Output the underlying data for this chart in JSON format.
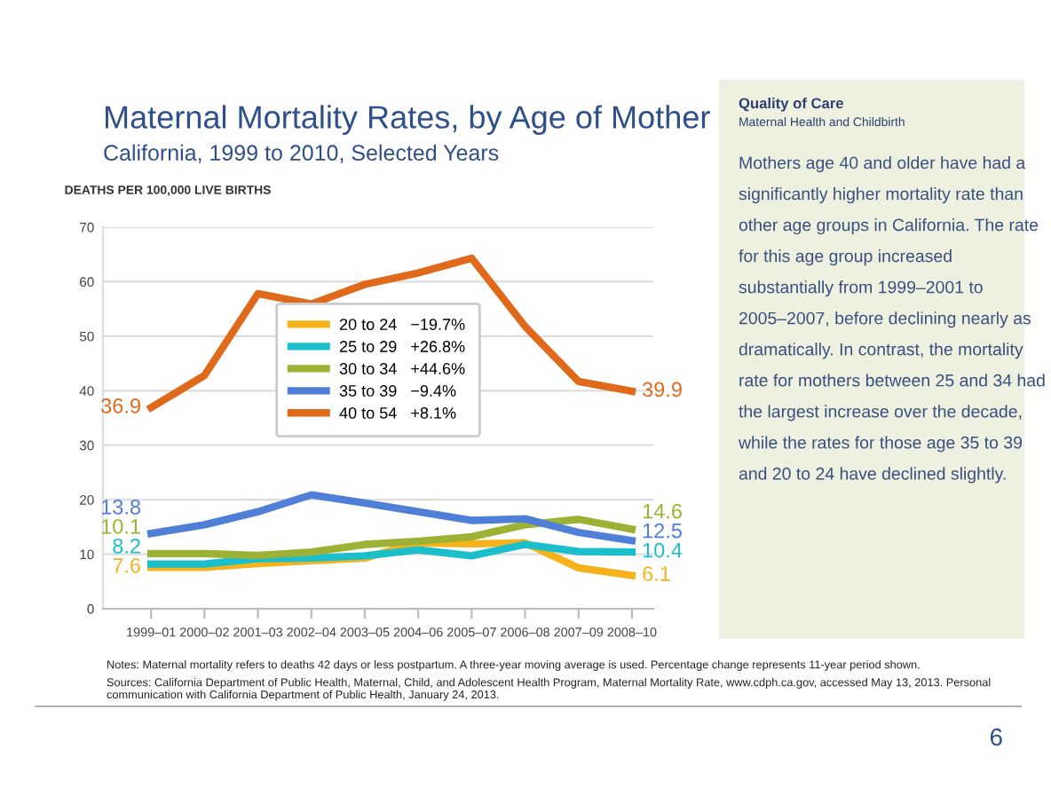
{
  "chart_data": {
    "type": "line",
    "title": "Maternal Mortality Rates, by Age of Mother",
    "subtitle": "California, 1999 to 2010, Selected Years",
    "ylabel": "DEATHS PER 100,000 LIVE BIRTHS",
    "categories": [
      "1999–01",
      "2000–02",
      "2001–03",
      "2002–04",
      "2003–05",
      "2004–06",
      "2005–07",
      "2006–08",
      "2007–09",
      "2008–10"
    ],
    "series": [
      {
        "name": "20 to 24   −19.7%",
        "color": "#f5b21b",
        "values": [
          7.6,
          7.6,
          8.3,
          8.8,
          9.3,
          12.1,
          11.9,
          12.1,
          7.5,
          6.1
        ],
        "value_labels": [
          "7.6",
          null,
          null,
          null,
          null,
          null,
          null,
          null,
          null,
          "6.1"
        ]
      },
      {
        "name": "25 to 29   +26.8%",
        "color": "#1bbfcc",
        "values": [
          8.2,
          8.2,
          9.2,
          9.3,
          9.7,
          10.8,
          9.7,
          11.8,
          10.5,
          10.4
        ],
        "value_labels": [
          "8.2",
          null,
          null,
          null,
          null,
          null,
          null,
          null,
          null,
          "10.4"
        ]
      },
      {
        "name": "30 to 34   +44.6%",
        "color": "#9db234",
        "values": [
          10.1,
          10.1,
          9.8,
          10.4,
          11.8,
          12.4,
          13.2,
          15.4,
          16.4,
          14.6
        ],
        "value_labels": [
          "10.1",
          null,
          null,
          null,
          null,
          null,
          null,
          null,
          null,
          "14.6"
        ]
      },
      {
        "name": "35 to 39   −9.4%",
        "color": "#4f7fd6",
        "values": [
          13.8,
          15.4,
          17.8,
          20.9,
          19.4,
          17.8,
          16.2,
          16.5,
          14.0,
          12.5
        ],
        "value_labels": [
          "13.8",
          null,
          null,
          null,
          null,
          null,
          null,
          null,
          null,
          "12.5"
        ]
      },
      {
        "name": "40 to 54   +8.1%",
        "color": "#e06a1c",
        "values": [
          36.9,
          42.8,
          57.8,
          55.9,
          59.5,
          61.6,
          64.3,
          51.8,
          41.7,
          39.9
        ],
        "value_labels": [
          "36.9",
          null,
          null,
          null,
          null,
          null,
          null,
          null,
          null,
          "39.9"
        ]
      }
    ],
    "ylim": [
      0,
      70
    ],
    "yticks": [
      0,
      10,
      20,
      30,
      40,
      50,
      60,
      70
    ],
    "grid": "y",
    "legend": "top",
    "line_style": "solid",
    "annotations": [
      "Quality of Care",
      "Maternal Health and Childbirth",
      "Mothers age 40 and older have had a significantly higher mortality rate than other age groups in California. The rate for this age group increased substantially from 1999–2001 to 2005–2007, before declining nearly as dramatically. In contrast, the mortality rate for mothers between 25 and 34 had the largest increase over the decade, while the rates for those age 35 to 39 and 20 to 24 have declined slightly.",
      "Notes: Maternal mortality refers to deaths 42 days or less postpartum. A three-year moving average is used. Percentage change represents 11-year period shown.",
      "Sources: California Department of Public Health, Maternal, Child, and Adolescent Health Program, Maternal Mortality Rate, www.cdph.ca.gov, accessed May 13, 2013. Personal communication with California Department of Public Health, January 24, 2013.",
      "6"
    ]
  }
}
